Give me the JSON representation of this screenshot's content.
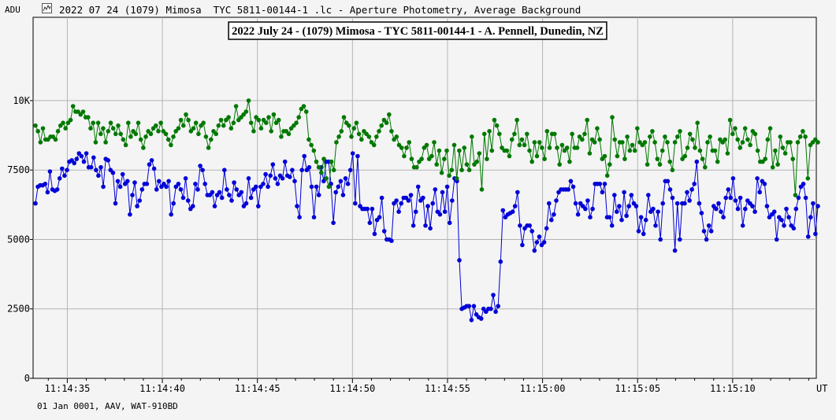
{
  "header": {
    "unit_label": "ADU",
    "window_title": "2022 07 24 (1079) Mimosa  TYC 5811-00144-1 .lc - Aperture Photometry, Average Background",
    "icon": "lightcurve-icon"
  },
  "footer": {
    "text": "01 Jan 0001, AAV, WAT-910BD"
  },
  "colors": {
    "target": "#0000d8",
    "comparison": "#007800",
    "grid": "#b4b4b4",
    "background": "#f4f4f4"
  },
  "chart_data": {
    "type": "line",
    "title": "2022 July 24 - (1079) Mimosa - TYC 5811-00144-1 - A. Pennell, Dunedin, NZ",
    "xlabel": "UT",
    "ylabel": "ADU",
    "y_ticks": [
      "0",
      "2500",
      "5000",
      "7500",
      "10K"
    ],
    "y_tick_values": [
      0,
      2500,
      5000,
      7500,
      10000
    ],
    "x_ticks": [
      "11:14:35",
      "11:14:40",
      "11:14:45",
      "11:14:50",
      "11:14:55",
      "11:15:00",
      "11:15:05",
      "11:15:10"
    ],
    "x_tick_seconds": [
      35,
      40,
      45,
      50,
      55,
      60,
      65,
      70
    ],
    "xlim": [
      "11:14:33.2",
      "11:15:14.4"
    ],
    "ylim": [
      0,
      13000
    ],
    "grid": true,
    "series": [
      {
        "color": "#0000d8",
        "values": [
          6300,
          6900,
          6950,
          6950,
          7000,
          6700,
          7450,
          6800,
          6750,
          6800,
          7200,
          7550,
          7300,
          7500,
          7800,
          7850,
          7750,
          7900,
          8100,
          8000,
          7800,
          8100,
          7600,
          7600,
          7950,
          7500,
          7300,
          7600,
          6900,
          7900,
          7850,
          7500,
          7400,
          6300,
          7100,
          6900,
          7350,
          7000,
          7100,
          5900,
          6600,
          7050,
          6200,
          6400,
          6800,
          7000,
          7000,
          7700,
          7850,
          7550,
          6800,
          7100,
          6900,
          7000,
          6900,
          7100,
          5900,
          6300,
          6900,
          7000,
          6800,
          6500,
          7200,
          6400,
          6100,
          6200,
          7000,
          6800,
          7650,
          7500,
          7000,
          6600,
          6600,
          6700,
          6200,
          6600,
          6700,
          6500,
          7500,
          6800,
          6600,
          6400,
          7050,
          6800,
          6600,
          6700,
          6200,
          6300,
          7200,
          6500,
          6800,
          6900,
          6200,
          6900,
          7000,
          7350,
          6900,
          7300,
          7700,
          7200,
          7000,
          7300,
          7200,
          7800,
          7300,
          7250,
          7500,
          7100,
          6200,
          5800,
          7500,
          8000,
          7500,
          7600,
          6900,
          5800,
          6900,
          6600,
          7600,
          7100,
          7800,
          7800,
          7000,
          5600,
          6700,
          6900,
          7100,
          6600,
          7200,
          7000,
          7500,
          8100,
          6300,
          8000,
          6200,
          6100,
          6100,
          6100,
          5600,
          6100,
          5200,
          5700,
          5800,
          6500,
          5300,
          5000,
          5000,
          4950,
          6300,
          6400,
          6000,
          6300,
          6500,
          6500,
          6400,
          6600,
          5500,
          6000,
          6900,
          6400,
          6500,
          5500,
          6200,
          5400,
          6300,
          6800,
          6000,
          5900,
          6700,
          6000,
          6900,
          5600,
          6400,
          7200,
          7100,
          4250,
          2500,
          2550,
          2600,
          2600,
          2100,
          2600,
          2300,
          2200,
          2150,
          2500,
          2400,
          2500,
          2500,
          3000,
          2400,
          2600,
          4200,
          6050,
          5800,
          5900,
          5950,
          6000,
          6200,
          6700,
          5500,
          4800,
          5400,
          5500,
          5500,
          5300,
          4600,
          4900,
          5100,
          4800,
          4900,
          5400,
          6300,
          5700,
          5900,
          6400,
          6700,
          6800,
          6800,
          6800,
          6800,
          7100,
          6900,
          6300,
          5900,
          6300,
          6200,
          6100,
          6400,
          5800,
          6100,
          7000,
          7000,
          7000,
          6700,
          7000,
          5800,
          5800,
          5500,
          6600,
          6000,
          6200,
          5700,
          6700,
          5850,
          6200,
          6600,
          6300,
          6200,
          5300,
          5800,
          5200,
          5700,
          6600,
          6000,
          6100,
          5500,
          6000,
          5000,
          6300,
          7100,
          7100,
          6800,
          6500,
          4600,
          6300,
          5000,
          6300,
          6300,
          6700,
          6400,
          6800,
          7000,
          7800,
          6300,
          5950,
          5300,
          5000,
          5500,
          5300,
          6200,
          6100,
          6300,
          6000,
          5800,
          6500,
          6800,
          6500,
          7200,
          6400,
          6100,
          6500,
          5500,
          6100,
          6400,
          6300,
          6200,
          6000,
          7200,
          6700,
          7100,
          7000,
          6200,
          5800,
          5900,
          6000,
          5000,
          5800,
          5700,
          5500,
          6100,
          5800,
          5500,
          5400,
          6100,
          6500,
          6900,
          7000,
          6500,
          5100,
          5800,
          6300,
          5200,
          6200
        ]
      },
      {
        "color": "#007800",
        "values": [
          9100,
          8900,
          8500,
          9000,
          8600,
          8600,
          8700,
          8700,
          8600,
          8900,
          9100,
          9200,
          9000,
          9200,
          9300,
          9800,
          9600,
          9600,
          9500,
          9600,
          9400,
          9400,
          9000,
          9200,
          8500,
          9200,
          8800,
          9000,
          8500,
          8900,
          9200,
          9000,
          8800,
          9100,
          8800,
          8600,
          8400,
          9200,
          8700,
          8900,
          8800,
          9200,
          8600,
          8300,
          8700,
          8900,
          8800,
          9000,
          9100,
          8900,
          9200,
          8900,
          8800,
          8600,
          8400,
          8700,
          8900,
          9000,
          9300,
          9100,
          9500,
          9300,
          8900,
          9000,
          9200,
          8800,
          9100,
          9200,
          8700,
          8300,
          8600,
          8900,
          8800,
          9100,
          9300,
          9100,
          9300,
          9400,
          9000,
          9200,
          9800,
          9300,
          9400,
          9500,
          9600,
          10000,
          9200,
          8900,
          9400,
          9300,
          9000,
          9300,
          9200,
          9400,
          8900,
          9500,
          9200,
          9300,
          8700,
          8900,
          8900,
          8800,
          9000,
          9100,
          9200,
          9400,
          9700,
          9800,
          9600,
          8600,
          8400,
          8200,
          7800,
          7600,
          7400,
          7900,
          7200,
          6900,
          7800,
          7500,
          8500,
          8700,
          8900,
          9400,
          9200,
          9100,
          8700,
          9000,
          9200,
          8800,
          8600,
          8900,
          8800,
          8700,
          8500,
          8400,
          8700,
          8900,
          9100,
          9300,
          9200,
          9500,
          8900,
          8600,
          8700,
          8400,
          8300,
          8000,
          8300,
          8500,
          7900,
          7600,
          7600,
          7800,
          7900,
          8300,
          8400,
          7900,
          8000,
          8500,
          7700,
          8200,
          7400,
          7900,
          8200,
          7300,
          7500,
          8400,
          7200,
          8200,
          7500,
          8300,
          7700,
          7500,
          8700,
          7700,
          7800,
          8100,
          6800,
          8800,
          7900,
          8900,
          8200,
          9300,
          9100,
          8800,
          8300,
          8200,
          8200,
          8000,
          8600,
          8800,
          9300,
          8400,
          8600,
          8400,
          8800,
          8200,
          7800,
          8500,
          8000,
          8500,
          8300,
          7900,
          8900,
          8300,
          8800,
          8800,
          8300,
          7700,
          8400,
          8200,
          8300,
          7800,
          8800,
          8300,
          8300,
          8700,
          8600,
          8800,
          9300,
          8100,
          8600,
          8500,
          9000,
          8600,
          7900,
          8000,
          7300,
          7700,
          9400,
          8600,
          8000,
          8500,
          8500,
          7900,
          8700,
          8200,
          8400,
          8200,
          9000,
          8500,
          8400,
          8500,
          7700,
          8700,
          8900,
          8500,
          7900,
          7700,
          8200,
          8700,
          8500,
          7800,
          7500,
          8500,
          8700,
          8900,
          7900,
          8000,
          8300,
          8800,
          8600,
          8300,
          9200,
          8200,
          7900,
          7600,
          8500,
          8700,
          8200,
          8200,
          7800,
          8600,
          8500,
          8600,
          8100,
          9300,
          8800,
          9000,
          8600,
          8300,
          8500,
          9000,
          8600,
          8400,
          8900,
          8800,
          8200,
          7800,
          7800,
          7900,
          8600,
          9000,
          7600,
          8200,
          7700,
          8700,
          8300,
          8100,
          8500,
          8500,
          7900,
          6600,
          8500,
          8700,
          8900,
          8700,
          7200,
          8400,
          8500,
          8600,
          8500
        ]
      }
    ]
  }
}
